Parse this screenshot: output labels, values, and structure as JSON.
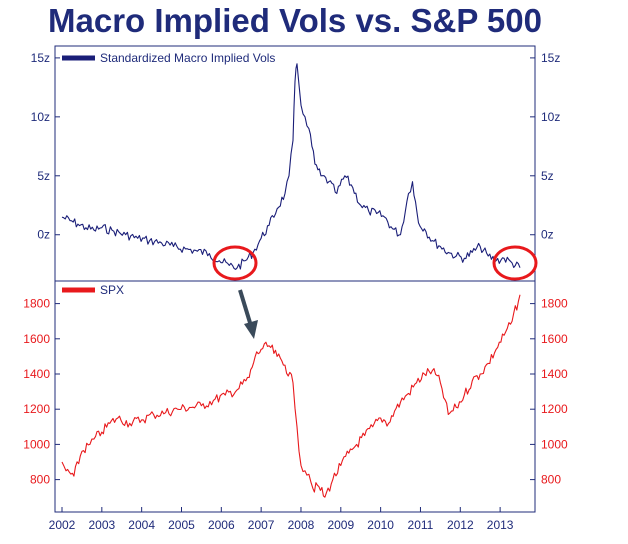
{
  "title": "Macro Implied Vols vs. S&P 500",
  "colors": {
    "title": "#1f2b7a",
    "vol_line": "#1a1e78",
    "spx_line": "#e8191c",
    "axis": "#1f2b7a",
    "spx_tick": "#e8191c",
    "circle": "#e8191c",
    "arrow": "#3a4a5a"
  },
  "chart_data": [
    {
      "type": "line",
      "series": [
        {
          "name": "Standardized Macro Implied Vols",
          "x": [
            2002.0,
            2002.2,
            2002.4,
            2002.6,
            2002.8,
            2003.0,
            2003.3,
            2003.6,
            2003.9,
            2004.2,
            2004.5,
            2004.8,
            2005.1,
            2005.4,
            2005.7,
            2005.95,
            2006.2,
            2006.4,
            2006.6,
            2006.8,
            2007.0,
            2007.2,
            2007.4,
            2007.6,
            2007.7,
            2007.8,
            2007.85,
            2007.9,
            2008.0,
            2008.1,
            2008.2,
            2008.35,
            2008.5,
            2008.7,
            2008.9,
            2009.1,
            2009.3,
            2009.5,
            2009.7,
            2009.9,
            2010.1,
            2010.3,
            2010.5,
            2010.7,
            2010.8,
            2010.95,
            2011.1,
            2011.3,
            2011.5,
            2011.7,
            2011.9,
            2012.1,
            2012.3,
            2012.5,
            2012.7,
            2012.9,
            2013.1,
            2013.3,
            2013.5
          ],
          "values": [
            1.5,
            1.2,
            0.9,
            0.6,
            0.4,
            0.6,
            0.3,
            0.0,
            -0.3,
            -0.5,
            -0.7,
            -1.0,
            -1.2,
            -1.4,
            -1.6,
            -2.2,
            -2.6,
            -2.8,
            -2.2,
            -1.5,
            -0.3,
            0.8,
            2.2,
            3.5,
            5.0,
            8.0,
            13.0,
            14.5,
            11.0,
            10.0,
            9.0,
            6.0,
            5.0,
            4.5,
            3.5,
            5.0,
            4.0,
            2.5,
            2.0,
            1.8,
            1.5,
            0.5,
            0.0,
            3.5,
            4.5,
            1.0,
            0.5,
            -0.5,
            -1.0,
            -1.5,
            -1.8,
            -2.0,
            -1.5,
            -1.0,
            -1.8,
            -2.2,
            -2.0,
            -2.4,
            -2.8
          ]
        }
      ],
      "yticks": [
        "0z",
        "5z",
        "10z",
        "15z"
      ],
      "ylim": [
        -3.5,
        15.5
      ],
      "xlim": [
        2002.0,
        2013.7
      ],
      "legend": "top-left"
    },
    {
      "type": "line",
      "series": [
        {
          "name": "SPX",
          "x": [
            2002.0,
            2002.1,
            2002.3,
            2002.5,
            2002.7,
            2002.8,
            2003.0,
            2003.2,
            2003.4,
            2003.7,
            2004.0,
            2004.3,
            2004.6,
            2004.9,
            2005.2,
            2005.5,
            2005.8,
            2006.1,
            2006.4,
            2006.7,
            2006.85,
            2007.0,
            2007.2,
            2007.4,
            2007.6,
            2007.8,
            2007.9,
            2008.0,
            2008.1,
            2008.2,
            2008.3,
            2008.45,
            2008.6,
            2008.8,
            2009.0,
            2009.2,
            2009.4,
            2009.6,
            2009.8,
            2010.0,
            2010.2,
            2010.35,
            2010.5,
            2010.7,
            2010.9,
            2011.1,
            2011.3,
            2011.5,
            2011.7,
            2011.9,
            2012.1,
            2012.3,
            2012.5,
            2012.7,
            2012.9,
            2013.1,
            2013.3,
            2013.5
          ],
          "values": [
            900,
            850,
            820,
            960,
            1000,
            1030,
            1070,
            1120,
            1150,
            1120,
            1140,
            1170,
            1180,
            1200,
            1210,
            1220,
            1250,
            1280,
            1310,
            1380,
            1500,
            1540,
            1560,
            1500,
            1450,
            1350,
            1100,
            880,
            850,
            830,
            750,
            760,
            700,
            800,
            880,
            950,
            1000,
            1050,
            1100,
            1150,
            1120,
            1190,
            1240,
            1290,
            1350,
            1400,
            1420,
            1350,
            1170,
            1210,
            1280,
            1360,
            1400,
            1460,
            1540,
            1620,
            1700,
            1850
          ]
        }
      ],
      "yticks": [
        800,
        1000,
        1200,
        1400,
        1600,
        1800
      ],
      "ylim": [
        650,
        1900
      ],
      "xticks": [
        2002,
        2003,
        2004,
        2005,
        2006,
        2007,
        2008,
        2009,
        2010,
        2011,
        2012,
        2013
      ],
      "xlim": [
        2002.0,
        2013.7
      ],
      "legend": "top-left"
    }
  ]
}
